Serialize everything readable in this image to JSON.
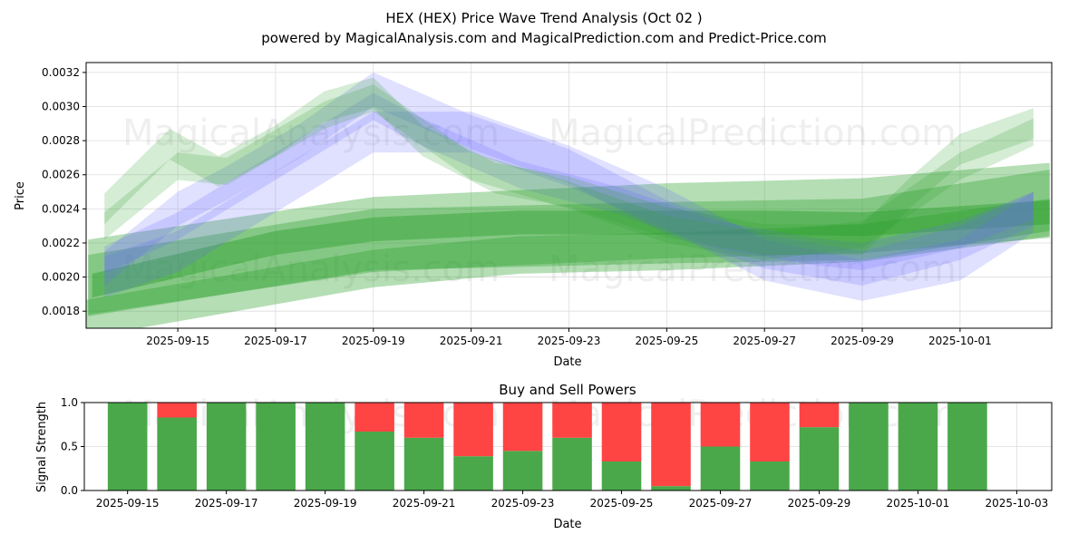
{
  "chart_data": [
    {
      "type": "area",
      "title": "HEX (HEX) Price Wave Trend Analysis (Oct 02 )",
      "subtitle": "powered by MagicalAnalysis.com and MagicalPrediction.com and Predict-Price.com",
      "xlabel": "Date",
      "ylabel": "Price",
      "xlim": [
        "2025-09-13T03:00",
        "2025-10-02T21:00"
      ],
      "ylim": [
        0.0017,
        0.003258
      ],
      "grid": true,
      "xticks": [
        "2025-09-15",
        "2025-09-17",
        "2025-09-19",
        "2025-09-21",
        "2025-09-23",
        "2025-09-25",
        "2025-09-27",
        "2025-09-29",
        "2025-10-01"
      ],
      "yticks": [
        0.0018,
        0.002,
        0.0022,
        0.0024,
        0.0026,
        0.0028,
        0.003,
        0.0032
      ],
      "ytick_labels": [
        "0.0018",
        "0.0020",
        "0.0022",
        "0.0024",
        "0.0026",
        "0.0028",
        "0.0030",
        "0.0032"
      ],
      "watermarks": [
        "MagicalAnalysis.com",
        "MagicalPrediction.com",
        "MagicalAnalysis.com",
        "MagicalPrediction.com"
      ],
      "colors": {
        "green": "#2ca02c",
        "blue": "#6666ff"
      },
      "bands": [
        {
          "color": "green",
          "opacity": 0.35,
          "halfwidth": 0.00022,
          "points": [
            [
              "2025-09-13T04:00",
              0.002
            ],
            [
              "2025-09-19T00:00",
              0.00225
            ],
            [
              "2025-09-25T00:00",
              0.00233
            ],
            [
              "2025-09-29T00:00",
              0.00236
            ],
            [
              "2025-10-02T20:00",
              0.00245
            ]
          ]
        },
        {
          "color": "green",
          "opacity": 0.35,
          "halfwidth": 0.00018,
          "points": [
            [
              "2025-09-13T04:00",
              0.00195
            ],
            [
              "2025-09-19T00:00",
              0.00222
            ],
            [
              "2025-09-25T00:00",
              0.00226
            ],
            [
              "2025-09-29T00:00",
              0.00228
            ],
            [
              "2025-10-02T20:00",
              0.00245
            ]
          ]
        },
        {
          "color": "green",
          "opacity": 0.35,
          "halfwidth": 0.00011,
          "points": [
            [
              "2025-09-13T00:00",
              0.00175
            ],
            [
              "2025-09-16T00:00",
              0.0019
            ],
            [
              "2025-09-19T00:00",
              0.00205
            ],
            [
              "2025-09-22T00:00",
              0.00213
            ],
            [
              "2025-09-25T00:00",
              0.00215
            ],
            [
              "2025-09-29T00:00",
              0.0022
            ],
            [
              "2025-10-02T20:00",
              0.00235
            ]
          ]
        },
        {
          "color": "green",
          "opacity": 0.45,
          "halfwidth": 7e-05,
          "points": [
            [
              "2025-09-13T06:00",
              0.00195
            ],
            [
              "2025-09-17T00:00",
              0.0022
            ],
            [
              "2025-09-19T00:00",
              0.00228
            ],
            [
              "2025-09-22T00:00",
              0.00232
            ],
            [
              "2025-09-27T00:00",
              0.00232
            ],
            [
              "2025-09-29T00:00",
              0.00231
            ],
            [
              "2025-10-02T20:00",
              0.00238
            ]
          ]
        },
        {
          "color": "blue",
          "opacity": 0.2,
          "halfwidth": 0.00012,
          "points": [
            [
              "2025-09-13T12:00",
              0.002
            ],
            [
              "2025-09-15T00:00",
              0.00215
            ],
            [
              "2025-09-17T00:00",
              0.0025
            ],
            [
              "2025-09-19T00:00",
              0.00285
            ],
            [
              "2025-09-21T00:00",
              0.00285
            ],
            [
              "2025-09-23T00:00",
              0.00265
            ],
            [
              "2025-09-25T00:00",
              0.0024
            ],
            [
              "2025-09-27T00:00",
              0.0021
            ],
            [
              "2025-09-29T00:00",
              0.00198
            ],
            [
              "2025-10-01T00:00",
              0.0021
            ],
            [
              "2025-10-02T12:00",
              0.00238
            ]
          ]
        },
        {
          "color": "blue",
          "opacity": 0.2,
          "halfwidth": 0.0001,
          "points": [
            [
              "2025-09-13T12:00",
              0.00205
            ],
            [
              "2025-09-15T00:00",
              0.0024
            ],
            [
              "2025-09-16T00:00",
              0.00255
            ],
            [
              "2025-09-17T12:00",
              0.0028
            ],
            [
              "2025-09-19T00:00",
              0.0031
            ],
            [
              "2025-09-21T00:00",
              0.00285
            ],
            [
              "2025-09-23T00:00",
              0.00265
            ],
            [
              "2025-09-25T00:00",
              0.00235
            ],
            [
              "2025-09-27T00:00",
              0.00215
            ],
            [
              "2025-09-29T00:00",
              0.00205
            ],
            [
              "2025-10-01T00:00",
              0.0022
            ],
            [
              "2025-10-02T12:00",
              0.0024
            ]
          ]
        },
        {
          "color": "blue",
          "opacity": 0.2,
          "halfwidth": 8e-05,
          "points": [
            [
              "2025-09-13T12:00",
              0.0021
            ],
            [
              "2025-09-15T00:00",
              0.0023
            ],
            [
              "2025-09-17T00:00",
              0.00265
            ],
            [
              "2025-09-19T00:00",
              0.003
            ],
            [
              "2025-09-20T00:00",
              0.00285
            ],
            [
              "2025-09-22T00:00",
              0.0026
            ],
            [
              "2025-09-24T00:00",
              0.00245
            ],
            [
              "2025-09-26T00:00",
              0.00225
            ],
            [
              "2025-09-28T00:00",
              0.00215
            ],
            [
              "2025-09-29T00:00",
              0.00212
            ],
            [
              "2025-10-01T00:00",
              0.00225
            ],
            [
              "2025-10-02T12:00",
              0.00242
            ]
          ]
        },
        {
          "color": "green",
          "opacity": 0.2,
          "halfwidth": 9e-05,
          "points": [
            [
              "2025-09-13T12:00",
              0.0024
            ],
            [
              "2025-09-14T20:00",
              0.00278
            ],
            [
              "2025-09-15T20:00",
              0.00262
            ],
            [
              "2025-09-17T00:00",
              0.0028
            ],
            [
              "2025-09-18T00:00",
              0.003
            ],
            [
              "2025-09-19T00:00",
              0.00308
            ],
            [
              "2025-09-20T00:00",
              0.0028
            ],
            [
              "2025-09-21T12:00",
              0.00258
            ],
            [
              "2025-09-23T00:00",
              0.0025
            ],
            [
              "2025-09-25T00:00",
              0.00232
            ],
            [
              "2025-09-27T00:00",
              0.00222
            ],
            [
              "2025-09-29T00:00",
              0.00222
            ],
            [
              "2025-09-30T00:00",
              0.0025
            ],
            [
              "2025-10-01T00:00",
              0.00275
            ],
            [
              "2025-10-02T12:00",
              0.0029
            ]
          ]
        },
        {
          "color": "green",
          "opacity": 0.2,
          "halfwidth": 8e-05,
          "points": [
            [
              "2025-09-13T12:00",
              0.0023
            ],
            [
              "2025-09-15T00:00",
              0.00265
            ],
            [
              "2025-09-16T00:00",
              0.00262
            ],
            [
              "2025-09-18T00:00",
              0.00295
            ],
            [
              "2025-09-19T00:00",
              0.00305
            ],
            [
              "2025-09-21T00:00",
              0.00265
            ],
            [
              "2025-09-23T00:00",
              0.00248
            ],
            [
              "2025-09-25T00:00",
              0.00228
            ],
            [
              "2025-09-27T00:00",
              0.00218
            ],
            [
              "2025-09-29T00:00",
              0.00225
            ],
            [
              "2025-10-01T00:00",
              0.00265
            ],
            [
              "2025-10-02T12:00",
              0.00285
            ]
          ]
        }
      ]
    },
    {
      "type": "bar",
      "title": "Buy and Sell Powers",
      "xlabel": "Date",
      "ylabel": "Signal Strength",
      "xlim": [
        "2025-09-14T03:00",
        "2025-10-03T17:00"
      ],
      "ylim": [
        0,
        1
      ],
      "grid": true,
      "xticks": [
        "2025-09-15",
        "2025-09-17",
        "2025-09-19",
        "2025-09-21",
        "2025-09-23",
        "2025-09-25",
        "2025-09-27",
        "2025-09-29",
        "2025-10-01",
        "2025-10-03"
      ],
      "yticks": [
        0,
        0.5,
        1
      ],
      "ytick_labels": [
        "0.0",
        "0.5",
        "1.0"
      ],
      "watermarks": [
        "MagicalAnalysis.com",
        "MagicalPrediction.com"
      ],
      "colors": {
        "buy": "#4aa84a",
        "sell": "#ff4444"
      },
      "categories": [
        "2025-09-15",
        "2025-09-16",
        "2025-09-17",
        "2025-09-18",
        "2025-09-19",
        "2025-09-20",
        "2025-09-21",
        "2025-09-22",
        "2025-09-23",
        "2025-09-24",
        "2025-09-25",
        "2025-09-26",
        "2025-09-27",
        "2025-09-28",
        "2025-09-29",
        "2025-09-30",
        "2025-10-01",
        "2025-10-02"
      ],
      "series": [
        {
          "name": "Buy",
          "values": [
            1.0,
            0.83,
            1.0,
            1.0,
            1.0,
            0.67,
            0.6,
            0.39,
            0.45,
            0.6,
            0.33,
            0.05,
            0.5,
            0.33,
            0.72,
            1.0,
            1.0,
            1.0
          ]
        },
        {
          "name": "Sell",
          "values": [
            0.0,
            0.17,
            0.0,
            0.0,
            0.0,
            0.33,
            0.4,
            0.61,
            0.55,
            0.4,
            0.67,
            0.95,
            0.5,
            0.67,
            0.28,
            0.0,
            0.0,
            0.0
          ]
        }
      ]
    }
  ]
}
